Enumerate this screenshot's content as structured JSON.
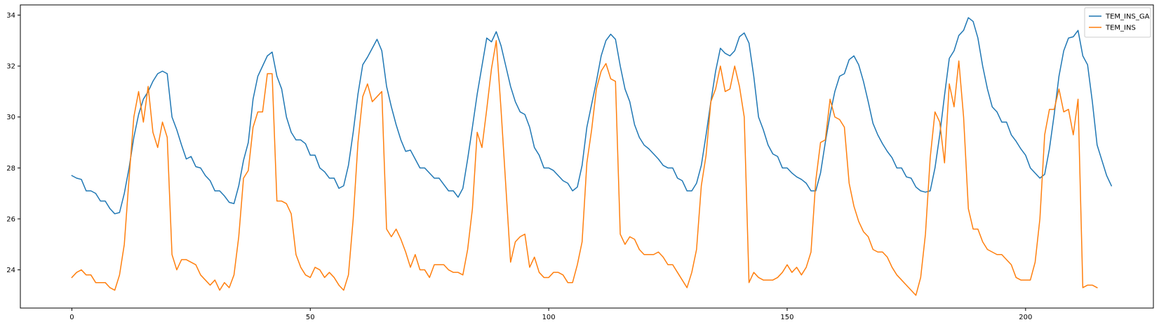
{
  "chart_data": {
    "type": "line",
    "title": "",
    "xlabel": "",
    "ylabel": "",
    "xlim": [
      -10.8,
      226.8
    ],
    "ylim": [
      22.5,
      34.4
    ],
    "x_ticks": [
      0,
      50,
      100,
      150,
      200
    ],
    "y_ticks": [
      24,
      26,
      28,
      30,
      32,
      34
    ],
    "grid": false,
    "legend_position": "top-right",
    "series": [
      {
        "name": "TEM_INS_GA",
        "color": "#1f77b4",
        "values": [
          27.7,
          27.6,
          27.55,
          27.1,
          27.1,
          27.0,
          26.7,
          26.7,
          26.4,
          26.2,
          26.25,
          27.0,
          28.0,
          29.2,
          30.1,
          30.7,
          31.0,
          31.4,
          31.7,
          31.8,
          31.7,
          30.0,
          29.5,
          28.9,
          28.35,
          28.45,
          28.05,
          28.0,
          27.7,
          27.5,
          27.1,
          27.1,
          26.9,
          26.65,
          26.6,
          27.3,
          28.3,
          29.0,
          30.7,
          31.6,
          32.0,
          32.4,
          32.55,
          31.6,
          31.1,
          30.0,
          29.4,
          29.1,
          29.1,
          28.95,
          28.5,
          28.5,
          28.0,
          27.85,
          27.6,
          27.6,
          27.2,
          27.3,
          28.1,
          29.4,
          30.9,
          32.05,
          32.35,
          32.7,
          33.05,
          32.6,
          31.2,
          30.4,
          29.7,
          29.1,
          28.65,
          28.7,
          28.35,
          28.0,
          28.0,
          27.8,
          27.6,
          27.6,
          27.35,
          27.1,
          27.1,
          26.85,
          27.2,
          28.35,
          29.6,
          30.9,
          32.0,
          33.1,
          32.95,
          33.35,
          32.8,
          32.0,
          31.2,
          30.6,
          30.2,
          30.1,
          29.6,
          28.8,
          28.5,
          28.0,
          28.0,
          27.9,
          27.7,
          27.5,
          27.4,
          27.1,
          27.25,
          28.1,
          29.6,
          30.5,
          31.4,
          32.4,
          33.0,
          33.25,
          33.05,
          32.0,
          31.1,
          30.6,
          29.7,
          29.2,
          28.9,
          28.75,
          28.55,
          28.35,
          28.1,
          28.0,
          28.0,
          27.6,
          27.5,
          27.1,
          27.1,
          27.4,
          28.1,
          29.3,
          30.6,
          31.8,
          32.7,
          32.5,
          32.4,
          32.6,
          33.15,
          33.3,
          32.9,
          31.6,
          30.0,
          29.5,
          28.9,
          28.55,
          28.45,
          28.0,
          28.0,
          27.8,
          27.65,
          27.55,
          27.4,
          27.1,
          27.1,
          27.8,
          29.0,
          30.1,
          31.0,
          31.6,
          31.7,
          32.25,
          32.4,
          32.05,
          31.4,
          30.6,
          29.75,
          29.3,
          28.95,
          28.65,
          28.4,
          28.0,
          28.0,
          27.65,
          27.6,
          27.25,
          27.1,
          27.05,
          27.1,
          28.0,
          29.3,
          30.85,
          32.3,
          32.6,
          33.2,
          33.4,
          33.9,
          33.75,
          33.1,
          32.0,
          31.1,
          30.4,
          30.2,
          29.8,
          29.8,
          29.3,
          29.05,
          28.75,
          28.5,
          28.0,
          27.8,
          27.6,
          27.75,
          28.75,
          30.1,
          31.6,
          32.6,
          33.1,
          33.15,
          33.4,
          32.4,
          32.05,
          30.6,
          28.9,
          28.3,
          27.7,
          27.3
        ]
      },
      {
        "name": "TEM_INS",
        "color": "#ff7f0e",
        "values": [
          23.7,
          23.9,
          24.0,
          23.8,
          23.8,
          23.5,
          23.5,
          23.5,
          23.3,
          23.2,
          23.8,
          25.0,
          27.6,
          30.0,
          31.0,
          29.8,
          31.2,
          29.4,
          28.8,
          29.8,
          29.2,
          24.6,
          24.0,
          24.4,
          24.4,
          24.3,
          24.2,
          23.8,
          23.6,
          23.4,
          23.6,
          23.2,
          23.5,
          23.3,
          23.8,
          25.3,
          27.6,
          27.9,
          29.6,
          30.2,
          30.2,
          31.7,
          31.7,
          26.7,
          26.7,
          26.6,
          26.2,
          24.6,
          24.1,
          23.8,
          23.7,
          24.1,
          24.0,
          23.7,
          23.9,
          23.7,
          23.4,
          23.2,
          23.8,
          26.0,
          29.0,
          30.8,
          31.3,
          30.6,
          30.8,
          31.0,
          25.6,
          25.3,
          25.6,
          25.2,
          24.7,
          24.1,
          24.6,
          24.0,
          24.0,
          23.7,
          24.2,
          24.2,
          24.2,
          24.0,
          23.9,
          23.9,
          23.8,
          24.8,
          26.4,
          29.4,
          28.8,
          30.3,
          31.9,
          33.0,
          30.3,
          27.3,
          24.3,
          25.1,
          25.3,
          25.4,
          24.1,
          24.5,
          23.9,
          23.7,
          23.7,
          23.9,
          23.9,
          23.8,
          23.5,
          23.5,
          24.2,
          25.1,
          28.2,
          29.5,
          31.1,
          31.8,
          32.1,
          31.5,
          31.4,
          25.4,
          25.0,
          25.3,
          25.2,
          24.8,
          24.6,
          24.6,
          24.6,
          24.7,
          24.5,
          24.2,
          24.2,
          23.9,
          23.6,
          23.3,
          23.9,
          24.8,
          27.3,
          28.5,
          30.6,
          31.1,
          32.0,
          31.0,
          31.1,
          32.0,
          31.2,
          30.0,
          23.5,
          23.9,
          23.7,
          23.6,
          23.6,
          23.6,
          23.7,
          23.9,
          24.2,
          23.9,
          24.1,
          23.8,
          24.1,
          24.7,
          27.5,
          29.0,
          29.1,
          30.7,
          30.0,
          29.9,
          29.6,
          27.4,
          26.5,
          25.9,
          25.5,
          25.3,
          24.8,
          24.7,
          24.7,
          24.5,
          24.1,
          23.8,
          23.6,
          23.4,
          23.2,
          23.0,
          23.7,
          25.4,
          28.4,
          30.2,
          29.8,
          28.2,
          31.3,
          30.4,
          32.2,
          30.0,
          26.4,
          25.6,
          25.6,
          25.1,
          24.8,
          24.7,
          24.6,
          24.6,
          24.4,
          24.2,
          23.7,
          23.6,
          23.6,
          23.6,
          24.3,
          26.0,
          29.3,
          30.3,
          30.3,
          31.1,
          30.2,
          30.3,
          29.3,
          30.7,
          23.3,
          23.4,
          23.4,
          23.3
        ]
      }
    ]
  }
}
